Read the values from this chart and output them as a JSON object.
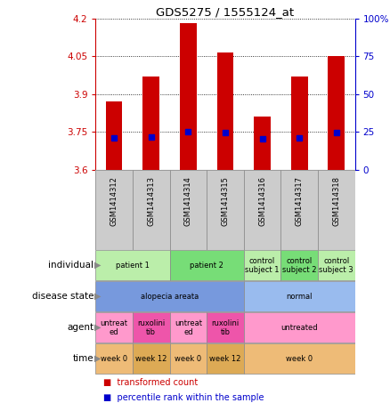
{
  "title": "GDS5275 / 1555124_at",
  "samples": [
    "GSM1414312",
    "GSM1414313",
    "GSM1414314",
    "GSM1414315",
    "GSM1414316",
    "GSM1414317",
    "GSM1414318"
  ],
  "bar_values": [
    3.87,
    3.97,
    4.18,
    4.065,
    3.81,
    3.97,
    4.05
  ],
  "percentile_values": [
    3.725,
    3.728,
    3.752,
    3.748,
    3.724,
    3.727,
    3.748
  ],
  "ylim_left": [
    3.6,
    4.2
  ],
  "ylim_right": [
    0,
    100
  ],
  "yticks_left": [
    3.6,
    3.75,
    3.9,
    4.05,
    4.2
  ],
  "ytick_labels_left": [
    "3.6",
    "3.75",
    "3.9",
    "4.05",
    "4.2"
  ],
  "yticks_right": [
    0,
    25,
    50,
    75,
    100
  ],
  "ytick_labels_right": [
    "0",
    "25",
    "50",
    "75",
    "100%"
  ],
  "bar_color": "#cc0000",
  "percentile_color": "#0000cc",
  "bar_width": 0.45,
  "annotation_rows": [
    {
      "label": "individual",
      "cells": [
        {
          "text": "patient 1",
          "span": [
            0,
            1
          ],
          "color": "#bbeeaa"
        },
        {
          "text": "patient 2",
          "span": [
            2,
            3
          ],
          "color": "#77dd77"
        },
        {
          "text": "control\nsubject 1",
          "span": [
            4,
            4
          ],
          "color": "#bbeeaa"
        },
        {
          "text": "control\nsubject 2",
          "span": [
            5,
            5
          ],
          "color": "#77dd77"
        },
        {
          "text": "control\nsubject 3",
          "span": [
            6,
            6
          ],
          "color": "#bbeeaa"
        }
      ]
    },
    {
      "label": "disease state",
      "cells": [
        {
          "text": "alopecia areata",
          "span": [
            0,
            3
          ],
          "color": "#7799dd"
        },
        {
          "text": "normal",
          "span": [
            4,
            6
          ],
          "color": "#99bbee"
        }
      ]
    },
    {
      "label": "agent",
      "cells": [
        {
          "text": "untreat\ned",
          "span": [
            0,
            0
          ],
          "color": "#ff99cc"
        },
        {
          "text": "ruxolini\ntib",
          "span": [
            1,
            1
          ],
          "color": "#ee55aa"
        },
        {
          "text": "untreat\ned",
          "span": [
            2,
            2
          ],
          "color": "#ff99cc"
        },
        {
          "text": "ruxolini\ntib",
          "span": [
            3,
            3
          ],
          "color": "#ee55aa"
        },
        {
          "text": "untreated",
          "span": [
            4,
            6
          ],
          "color": "#ff99cc"
        }
      ]
    },
    {
      "label": "time",
      "cells": [
        {
          "text": "week 0",
          "span": [
            0,
            0
          ],
          "color": "#eebb77"
        },
        {
          "text": "week 12",
          "span": [
            1,
            1
          ],
          "color": "#ddaa55"
        },
        {
          "text": "week 0",
          "span": [
            2,
            2
          ],
          "color": "#eebb77"
        },
        {
          "text": "week 12",
          "span": [
            3,
            3
          ],
          "color": "#ddaa55"
        },
        {
          "text": "week 0",
          "span": [
            4,
            6
          ],
          "color": "#eebb77"
        }
      ]
    }
  ],
  "legend_items": [
    {
      "color": "#cc0000",
      "label": "transformed count"
    },
    {
      "color": "#0000cc",
      "label": "percentile rank within the sample"
    }
  ],
  "axis_left_color": "#cc0000",
  "axis_right_color": "#0000cc",
  "sample_label_bg": "#cccccc"
}
